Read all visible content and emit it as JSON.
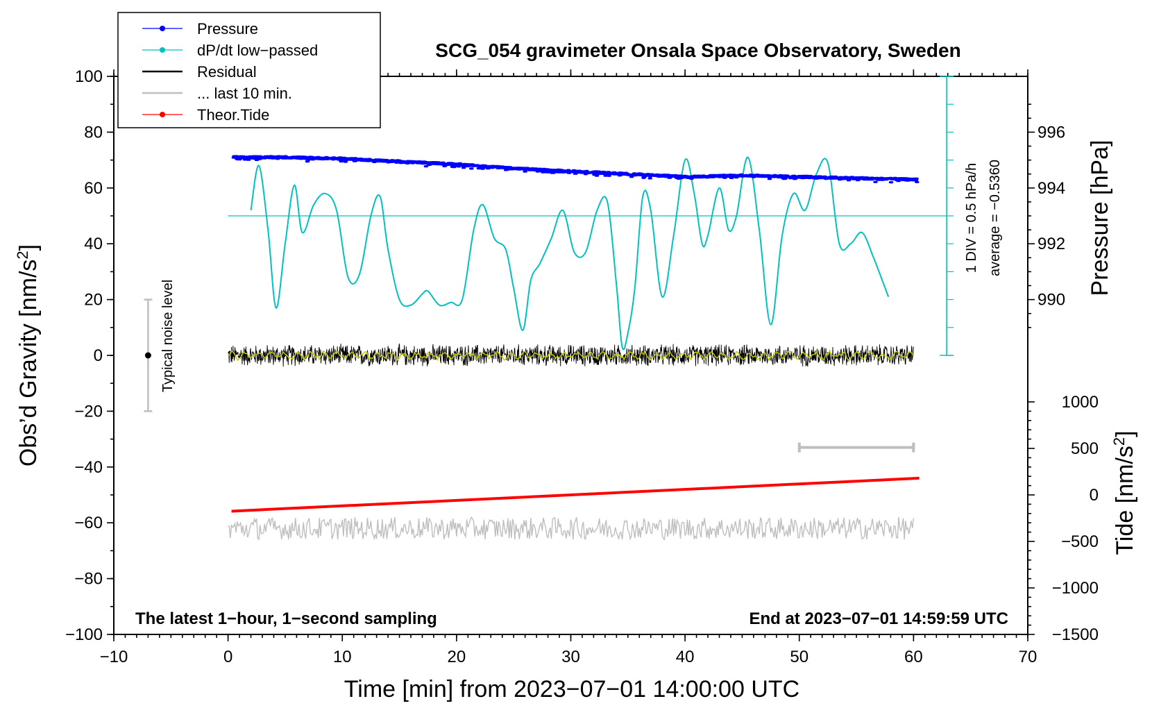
{
  "chart_data": {
    "type": "line",
    "title": "SCG_054 gravimeter Onsala Space Observatory, Sweden",
    "xlabel": "Time [min] from 2023−07−01 14:00:00 UTC",
    "ylabel": "Obs’d Gravity [nm/s",
    "ylabel_sup": "2",
    "ylabel_end": "]",
    "y2label": "Pressure [hPa]",
    "y3label": "Tide [nm/s",
    "y3label_sup": "2",
    "y3label_end": "]",
    "xlim": [
      -10,
      70
    ],
    "ylim": [
      -100,
      100
    ],
    "xticks": [
      "−10",
      "0",
      "10",
      "20",
      "30",
      "40",
      "50",
      "60",
      "70"
    ],
    "xtick_values": [
      -10,
      0,
      10,
      20,
      30,
      40,
      50,
      60,
      70
    ],
    "yticks": [
      "−100",
      "−80",
      "−60",
      "−40",
      "−20",
      "0",
      "20",
      "40",
      "60",
      "80",
      "100"
    ],
    "ytick_values": [
      -100,
      -80,
      -60,
      -40,
      -20,
      0,
      20,
      40,
      60,
      80,
      100
    ],
    "pressure_ticks": [
      "990",
      "992",
      "994",
      "996"
    ],
    "pressure_tick_values": [
      990,
      992,
      994,
      996
    ],
    "pressure_mapping": {
      "pressure": [
        990,
        996
      ],
      "gravity": [
        20,
        80
      ]
    },
    "tide_ticks": [
      "−1500",
      "−1000",
      "−500",
      "0",
      "500",
      "1000"
    ],
    "tide_tick_values": [
      -1500,
      -1000,
      -500,
      0,
      500,
      1000
    ],
    "tide_mapping": {
      "tide": [
        -1500,
        1000
      ],
      "gravity": [
        -100,
        -16.67
      ]
    },
    "legend": [
      {
        "label": "Pressure",
        "color": "#0000ff",
        "marker": true
      },
      {
        "label": "dP/dt low−passed",
        "color": "#00c0c0",
        "marker": true
      },
      {
        "label": "Residual",
        "color": "#000000",
        "marker": false
      },
      {
        "label": "... last 10 min.",
        "color": "#bebebe",
        "marker": false
      },
      {
        "label": "Theor.Tide",
        "color": "#ff0000",
        "marker": true
      }
    ],
    "series": [
      {
        "name": "Pressure",
        "color": "#0000ff",
        "units": "hPa",
        "x": [
          0.5,
          5,
          10,
          15,
          20,
          25,
          30,
          35,
          40,
          45,
          50,
          55,
          60.3
        ],
        "values": [
          995.1,
          995.1,
          995.05,
          994.95,
          994.85,
          994.7,
          994.6,
          994.5,
          994.4,
          994.45,
          994.4,
          994.35,
          994.3
        ]
      },
      {
        "name": "dP/dt low-passed",
        "color": "#00c0c0",
        "units": "nm/s2 plot scale",
        "x": [
          2,
          2.7,
          3.5,
          4.2,
          5,
          5.8,
          6.5,
          7.5,
          8.5,
          9.5,
          10.5,
          11.5,
          12.5,
          13.3,
          14,
          15,
          16,
          17,
          17.5,
          18.5,
          19.5,
          20.5,
          21.5,
          22.3,
          23.3,
          24.3,
          25,
          25.8,
          26.5,
          27.3,
          28.3,
          29.3,
          30.3,
          31.3,
          32.3,
          33.2,
          34,
          34.5,
          35,
          35.6,
          36.3,
          37,
          38,
          39,
          40,
          40.8,
          41.5,
          42,
          43,
          43.8,
          44.5,
          45.5,
          46.5,
          47.5,
          48.5,
          49.5,
          50.5,
          51.5,
          52.5,
          53.5,
          54.5,
          55.5,
          56.5,
          57.8
        ],
        "values": [
          52,
          68,
          45,
          17,
          40,
          61,
          44,
          54,
          58,
          52,
          28,
          29,
          50,
          57,
          38,
          20,
          18,
          22,
          23,
          18,
          19,
          20,
          45,
          54,
          42,
          38,
          24,
          9,
          27,
          33,
          42,
          52,
          37,
          37,
          52,
          55,
          25,
          3,
          8,
          24,
          57,
          52,
          21,
          43,
          70,
          58,
          40,
          43,
          60,
          45,
          50,
          71,
          45,
          11,
          43,
          58,
          52,
          65,
          69,
          40,
          40,
          44,
          35,
          21
        ]
      },
      {
        "name": "Residual",
        "color": "#000000",
        "units": "nm/s2",
        "x": [
          0,
          60
        ],
        "values": [
          0,
          0
        ],
        "noise_amplitude": 4
      },
      {
        "name": "... last 10 min.",
        "color": "#bebebe",
        "units": "nm/s2 plot scale",
        "x": [
          0,
          60
        ],
        "values": [
          -62,
          -62
        ],
        "noise_amplitude": 4
      },
      {
        "name": "Theor.Tide",
        "color": "#ff0000",
        "units": "nm/s2",
        "x": [
          0.3,
          60.5
        ],
        "values": [
          -175,
          180
        ]
      }
    ],
    "annotations": {
      "noise_label": "Typical noise level",
      "noise_bar_range": [
        -20,
        20
      ],
      "noise_bar_x": -7,
      "dpdt_scale_label": "1 DIV = 0.5 hPa/h",
      "dpdt_average_label": "average = −0.5360",
      "dpdt_zero_level": 50,
      "last10_bar": [
        50,
        60
      ],
      "last10_bar_y": -33,
      "bottom_left": "The latest 1−hour, 1−second sampling",
      "bottom_right": "End at 2023−07−01 14:59:59 UTC"
    }
  }
}
